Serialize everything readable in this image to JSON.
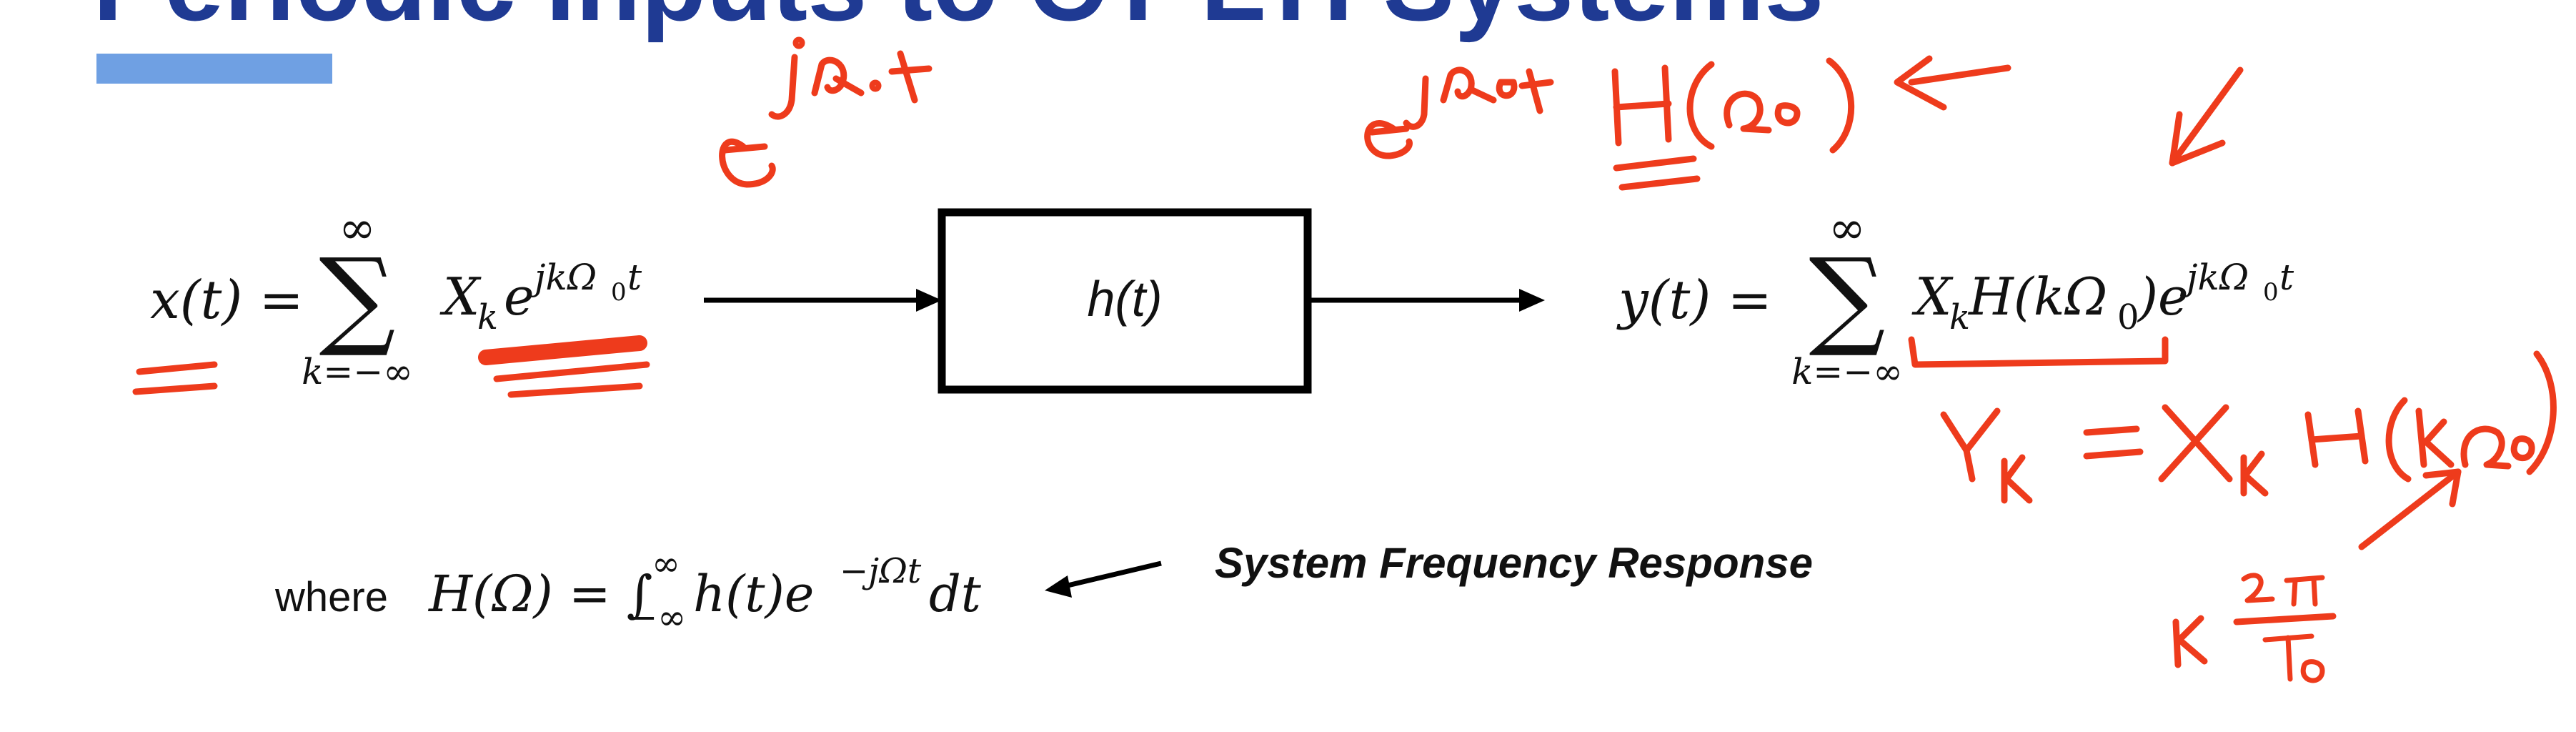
{
  "slide": {
    "title": "Periodic Inputs to CT LTI Systems",
    "accent_color": "#1f3a93",
    "underline_color": "#6fa0e3"
  },
  "input_eq": {
    "lhs": "x(t) =",
    "sum_top": "∞",
    "sum_symbol": "∑",
    "sum_bottom": "k=−∞",
    "coef": "X",
    "coef_sub": "k",
    "exp_base": "e",
    "exp": "jkΩ",
    "exp_sub": "0",
    "exp_t": "t"
  },
  "system_block": {
    "label": "h(t)"
  },
  "output_eq": {
    "lhs": "y(t) =",
    "sum_top": "∞",
    "sum_symbol": "∑",
    "sum_bottom": "k=−∞",
    "coef": "X",
    "coef_sub": "k",
    "H_open": "H(kΩ",
    "H_sub": "0",
    "H_close": ")",
    "exp_base": "e",
    "exp": "jkΩ",
    "exp_sub": "0",
    "exp_t": "t"
  },
  "freq_response": {
    "where": "where",
    "expr_lhs": "H(Ω) = ∫",
    "upper": "∞",
    "lower": "−∞",
    "integrand": "h(t)e",
    "exp": "−jΩt",
    "dt": "dt",
    "caption": "System Frequency Response"
  },
  "annotations": {
    "ink_color": "#ee3b1c",
    "note_exp": "e^(jΩ₀t)",
    "note_output": "e^(jΩ₀t) H(Ω₀)",
    "note_yk": "Yₖ = Xₖ H(kΩ₀)",
    "note_k": "k 2π/T₀"
  }
}
